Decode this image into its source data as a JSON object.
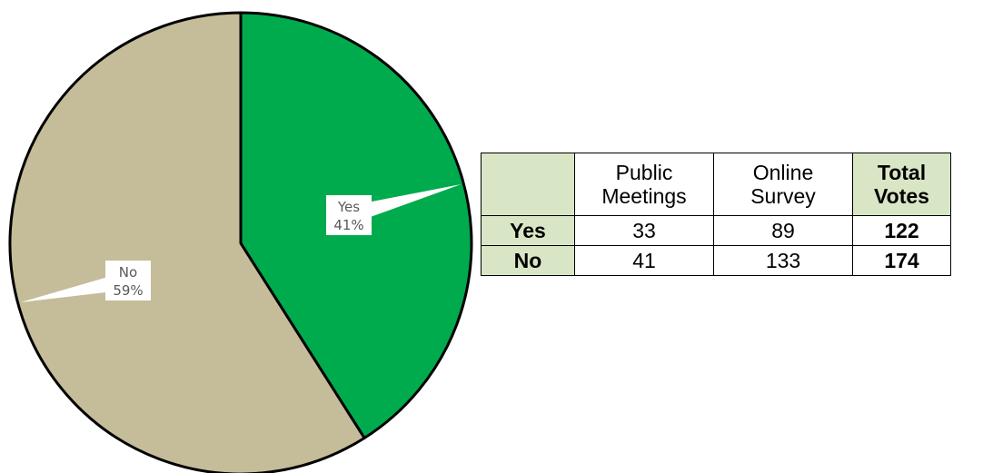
{
  "colors": {
    "yes": "#00ab4e",
    "no": "#c5bc99",
    "table_shade": "#d9e6c5"
  },
  "chart_data": {
    "type": "pie",
    "slices": [
      {
        "label": "Yes",
        "value": 41,
        "percent_label": "41%"
      },
      {
        "label": "No",
        "value": 59,
        "percent_label": "59%"
      }
    ],
    "start_angle": "12 o'clock",
    "direction": "clockwise"
  },
  "table": {
    "header": {
      "public_line1": "Public",
      "public_line2": "Meetings",
      "online_line1": "Online",
      "online_line2": "Survey",
      "total_line1": "Total",
      "total_line2": "Votes"
    },
    "rows": [
      {
        "label": "Yes",
        "public": "33",
        "online": "89",
        "total": "122"
      },
      {
        "label": "No",
        "public": "41",
        "online": "133",
        "total": "174"
      }
    ]
  }
}
